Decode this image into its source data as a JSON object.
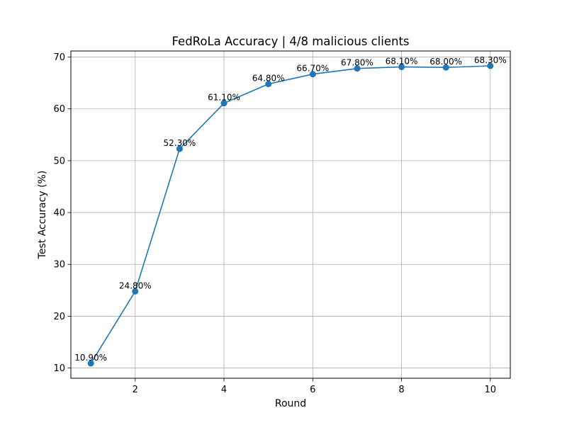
{
  "chart_data": {
    "type": "line",
    "title": "FedRoLa Accuracy | 4/8 malicious clients",
    "xlabel": "Round",
    "ylabel": "Test Accuracy (%)",
    "x": [
      1,
      2,
      3,
      4,
      5,
      6,
      7,
      8,
      9,
      10
    ],
    "series": [
      {
        "values": [
          10.9,
          24.8,
          52.3,
          61.1,
          64.8,
          66.7,
          67.8,
          68.1,
          68.0,
          68.3
        ],
        "color": "#1f77b4",
        "marker": "circle"
      }
    ],
    "data_labels": [
      "10.90%",
      "24.80%",
      "52.30%",
      "61.10%",
      "64.80%",
      "66.70%",
      "67.80%",
      "68.10%",
      "68.00%",
      "68.30%"
    ],
    "xlim": [
      0.55,
      10.45
    ],
    "ylim": [
      8.03,
      71.17
    ],
    "xticks": [
      2,
      4,
      6,
      8,
      10
    ],
    "yticks": [
      10,
      20,
      30,
      40,
      50,
      60,
      70
    ],
    "grid": true,
    "legend": "none"
  }
}
